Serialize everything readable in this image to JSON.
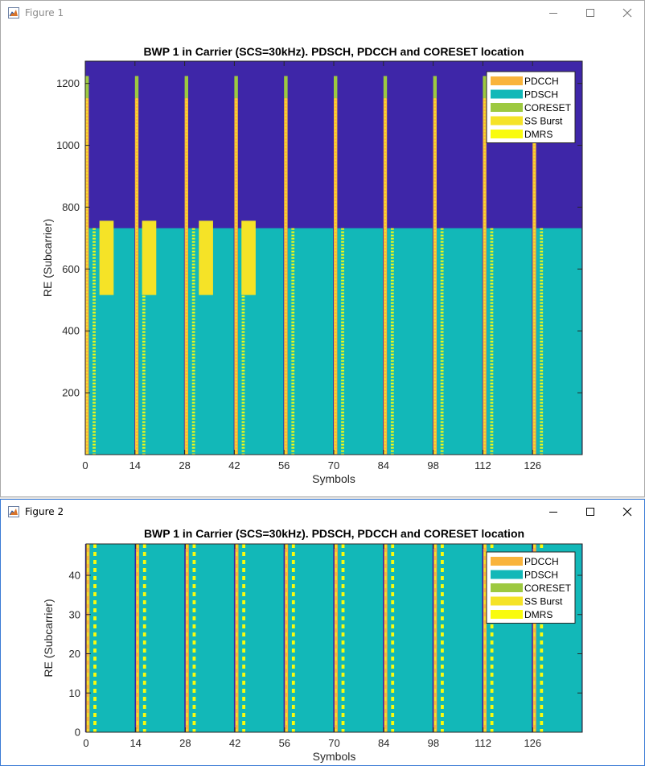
{
  "windows": [
    {
      "title": "Figure 1",
      "active": false,
      "chart_data": {
        "type": "heatmap",
        "title": "BWP 1 in Carrier (SCS=30kHz). PDSCH, PDCCH and CORESET location",
        "xlabel": "Symbols",
        "ylabel": "RE (Subcarrier)",
        "xlim": [
          0,
          140
        ],
        "ylim": [
          0,
          1272
        ],
        "xticks": [
          0,
          14,
          28,
          42,
          56,
          70,
          84,
          98,
          112,
          126
        ],
        "yticks": [
          200,
          400,
          600,
          800,
          1000,
          1200
        ],
        "grid": false,
        "legend_position": "top-right",
        "legend": [
          "PDCCH",
          "PDSCH",
          "CORESET",
          "SS Burst",
          "DMRS"
        ],
        "colors": {
          "background": "#3e26a8",
          "PDCCH": "#f9b43c",
          "PDSCH": "#12b8b8",
          "CORESET": "#9dc940",
          "SS Burst": "#f5e327",
          "DMRS": "#f9fb0e"
        },
        "slot_starts": [
          0,
          14,
          28,
          42,
          56,
          70,
          84,
          98,
          112,
          126
        ],
        "slot_length": 14,
        "coreset": {
          "symbol_offset": 0,
          "symbols": 1,
          "re_range": [
            1152,
            1224
          ]
        },
        "pdcch": {
          "symbol_offset": 0,
          "symbols": 1,
          "re_range": [
            0,
            1152
          ]
        },
        "pdsch": {
          "symbol_offset": 1,
          "symbols": 13,
          "re_range": [
            0,
            732
          ]
        },
        "dmrs": {
          "symbol_offset": 2,
          "re_range": [
            0,
            732
          ]
        },
        "ss_burst": {
          "blocks": [
            {
              "x": [
                4,
                8
              ]
            },
            {
              "x": [
                16,
                20
              ]
            },
            {
              "x": [
                32,
                36
              ]
            },
            {
              "x": [
                44,
                48
              ]
            }
          ],
          "re_range": [
            516,
            756
          ]
        }
      }
    },
    {
      "title": "Figure 2",
      "active": true,
      "chart_data": {
        "type": "heatmap",
        "title": "BWP 1 in Carrier (SCS=30kHz). PDSCH, PDCCH and CORESET location",
        "xlabel": "Symbols",
        "ylabel": "RE (Subcarrier)",
        "xlim": [
          0,
          140
        ],
        "ylim": [
          0,
          48
        ],
        "xticks": [
          0,
          14,
          28,
          42,
          56,
          70,
          84,
          98,
          112,
          126
        ],
        "yticks": [
          0,
          10,
          20,
          30,
          40
        ],
        "grid": false,
        "legend_position": "top-right",
        "legend": [
          "PDCCH",
          "PDSCH",
          "CORESET",
          "SS Burst",
          "DMRS"
        ],
        "colors": {
          "background": "#3e26a8",
          "PDCCH": "#f9b43c",
          "PDSCH": "#12b8b8",
          "CORESET": "#9dc940",
          "SS Burst": "#f5e327",
          "DMRS": "#f9fb0e"
        },
        "slot_starts": [
          0,
          14,
          28,
          42,
          56,
          70,
          84,
          98,
          112,
          126
        ],
        "slot_length": 14,
        "coreset": {
          "symbol_offset": 0,
          "symbols": 1,
          "re_range": [
            0,
            48
          ]
        },
        "pdcch": {
          "symbol_offset": 0,
          "symbols": 1,
          "re_range": [
            0,
            48
          ]
        },
        "pdsch": {
          "symbol_offset": 1,
          "symbols": 13,
          "re_range": [
            0,
            48
          ]
        },
        "dmrs": {
          "symbol_offset": 2,
          "re_range": [
            0,
            48
          ]
        },
        "ss_burst": {
          "blocks": [],
          "re_range": [
            0,
            0
          ]
        }
      }
    }
  ]
}
